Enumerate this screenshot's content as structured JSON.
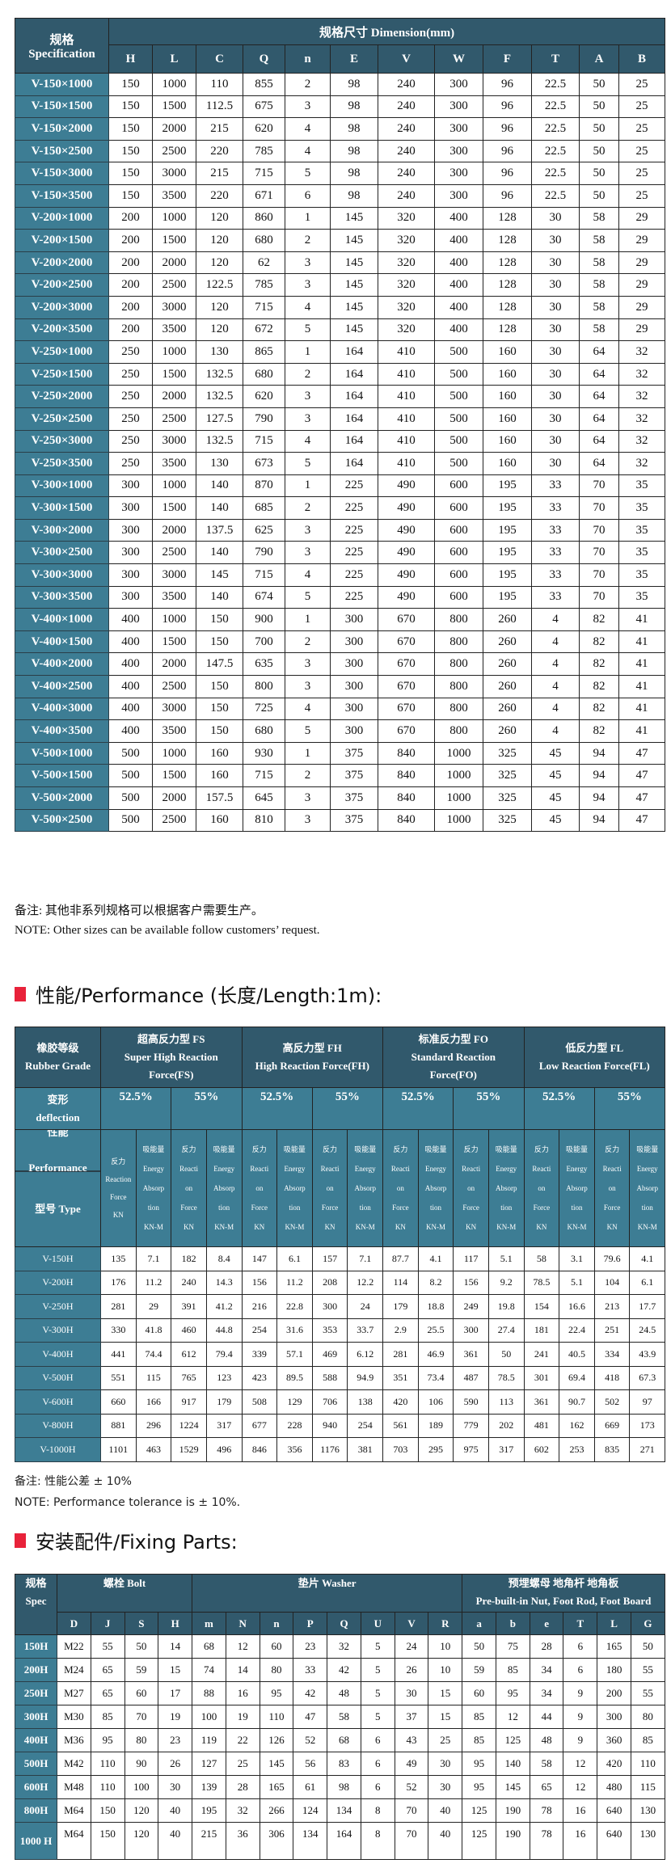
{
  "dimension_table": {
    "spec_header": [
      "规格",
      "Specification"
    ],
    "group_header": "规格尺寸  Dimension(mm)",
    "columns": [
      "H",
      "L",
      "C",
      "Q",
      "n",
      "E",
      "V",
      "W",
      "F",
      "T",
      "A",
      "B"
    ],
    "rows": [
      [
        "V-150×1000",
        "150",
        "1000",
        "110",
        "855",
        "2",
        "98",
        "240",
        "300",
        "96",
        "22.5",
        "50",
        "25"
      ],
      [
        "V-150×1500",
        "150",
        "1500",
        "112.5",
        "675",
        "3",
        "98",
        "240",
        "300",
        "96",
        "22.5",
        "50",
        "25"
      ],
      [
        "V-150×2000",
        "150",
        "2000",
        "215",
        "620",
        "4",
        "98",
        "240",
        "300",
        "96",
        "22.5",
        "50",
        "25"
      ],
      [
        "V-150×2500",
        "150",
        "2500",
        "220",
        "785",
        "4",
        "98",
        "240",
        "300",
        "96",
        "22.5",
        "50",
        "25"
      ],
      [
        "V-150×3000",
        "150",
        "3000",
        "215",
        "715",
        "5",
        "98",
        "240",
        "300",
        "96",
        "22.5",
        "50",
        "25"
      ],
      [
        "V-150×3500",
        "150",
        "3500",
        "220",
        "671",
        "6",
        "98",
        "240",
        "300",
        "96",
        "22.5",
        "50",
        "25"
      ],
      [
        "V-200×1000",
        "200",
        "1000",
        "120",
        "860",
        "1",
        "145",
        "320",
        "400",
        "128",
        "30",
        "58",
        "29"
      ],
      [
        "V-200×1500",
        "200",
        "1500",
        "120",
        "680",
        "2",
        "145",
        "320",
        "400",
        "128",
        "30",
        "58",
        "29"
      ],
      [
        "V-200×2000",
        "200",
        "2000",
        "120",
        "62",
        "3",
        "145",
        "320",
        "400",
        "128",
        "30",
        "58",
        "29"
      ],
      [
        "V-200×2500",
        "200",
        "2500",
        "122.5",
        "785",
        "3",
        "145",
        "320",
        "400",
        "128",
        "30",
        "58",
        "29"
      ],
      [
        "V-200×3000",
        "200",
        "3000",
        "120",
        "715",
        "4",
        "145",
        "320",
        "400",
        "128",
        "30",
        "58",
        "29"
      ],
      [
        "V-200×3500",
        "200",
        "3500",
        "120",
        "672",
        "5",
        "145",
        "320",
        "400",
        "128",
        "30",
        "58",
        "29"
      ],
      [
        "V-250×1000",
        "250",
        "1000",
        "130",
        "865",
        "1",
        "164",
        "410",
        "500",
        "160",
        "30",
        "64",
        "32"
      ],
      [
        "V-250×1500",
        "250",
        "1500",
        "132.5",
        "680",
        "2",
        "164",
        "410",
        "500",
        "160",
        "30",
        "64",
        "32"
      ],
      [
        "V-250×2000",
        "250",
        "2000",
        "132.5",
        "620",
        "3",
        "164",
        "410",
        "500",
        "160",
        "30",
        "64",
        "32"
      ],
      [
        "V-250×2500",
        "250",
        "2500",
        "127.5",
        "790",
        "3",
        "164",
        "410",
        "500",
        "160",
        "30",
        "64",
        "32"
      ],
      [
        "V-250×3000",
        "250",
        "3000",
        "132.5",
        "715",
        "4",
        "164",
        "410",
        "500",
        "160",
        "30",
        "64",
        "32"
      ],
      [
        "V-250×3500",
        "250",
        "3500",
        "130",
        "673",
        "5",
        "164",
        "410",
        "500",
        "160",
        "30",
        "64",
        "32"
      ],
      [
        "V-300×1000",
        "300",
        "1000",
        "140",
        "870",
        "1",
        "225",
        "490",
        "600",
        "195",
        "33",
        "70",
        "35"
      ],
      [
        "V-300×1500",
        "300",
        "1500",
        "140",
        "685",
        "2",
        "225",
        "490",
        "600",
        "195",
        "33",
        "70",
        "35"
      ],
      [
        "V-300×2000",
        "300",
        "2000",
        "137.5",
        "625",
        "3",
        "225",
        "490",
        "600",
        "195",
        "33",
        "70",
        "35"
      ],
      [
        "V-300×2500",
        "300",
        "2500",
        "140",
        "790",
        "3",
        "225",
        "490",
        "600",
        "195",
        "33",
        "70",
        "35"
      ],
      [
        "V-300×3000",
        "300",
        "3000",
        "145",
        "715",
        "4",
        "225",
        "490",
        "600",
        "195",
        "33",
        "70",
        "35"
      ],
      [
        "V-300×3500",
        "300",
        "3500",
        "140",
        "674",
        "5",
        "225",
        "490",
        "600",
        "195",
        "33",
        "70",
        "35"
      ],
      [
        "V-400×1000",
        "400",
        "1000",
        "150",
        "900",
        "1",
        "300",
        "670",
        "800",
        "260",
        "4",
        "82",
        "41"
      ],
      [
        "V-400×1500",
        "400",
        "1500",
        "150",
        "700",
        "2",
        "300",
        "670",
        "800",
        "260",
        "4",
        "82",
        "41"
      ],
      [
        "V-400×2000",
        "400",
        "2000",
        "147.5",
        "635",
        "3",
        "300",
        "670",
        "800",
        "260",
        "4",
        "82",
        "41"
      ],
      [
        "V-400×2500",
        "400",
        "2500",
        "150",
        "800",
        "3",
        "300",
        "670",
        "800",
        "260",
        "4",
        "82",
        "41"
      ],
      [
        "V-400×3000",
        "400",
        "3000",
        "150",
        "725",
        "4",
        "300",
        "670",
        "800",
        "260",
        "4",
        "82",
        "41"
      ],
      [
        "V-400×3500",
        "400",
        "3500",
        "150",
        "680",
        "5",
        "300",
        "670",
        "800",
        "260",
        "4",
        "82",
        "41"
      ],
      [
        "V-500×1000",
        "500",
        "1000",
        "160",
        "930",
        "1",
        "375",
        "840",
        "1000",
        "325",
        "45",
        "94",
        "47"
      ],
      [
        "V-500×1500",
        "500",
        "1500",
        "160",
        "715",
        "2",
        "375",
        "840",
        "1000",
        "325",
        "45",
        "94",
        "47"
      ],
      [
        "V-500×2000",
        "500",
        "2000",
        "157.5",
        "645",
        "3",
        "375",
        "840",
        "1000",
        "325",
        "45",
        "94",
        "47"
      ],
      [
        "V-500×2500",
        "500",
        "2500",
        "160",
        "810",
        "3",
        "375",
        "840",
        "1000",
        "325",
        "45",
        "94",
        "47"
      ]
    ]
  },
  "dimension_notes": {
    "cn": "备注:  其他非系列规格可以根据客户需要生产。",
    "en": "NOTE: Other sizes can be available follow customers’  request."
  },
  "performance_heading": "性能/Performance (长度/Length:1m):",
  "performance_table": {
    "grade_header": [
      "橡胶等级",
      "Rubber Grade"
    ],
    "groups": [
      [
        "超高反力型 FS",
        "Super High Reaction",
        "Force(FS)"
      ],
      [
        "高反力型 FH",
        "High Reaction Force(FH)"
      ],
      [
        "标准反力型 FO",
        "Standard Reaction",
        "Force(FO)"
      ],
      [
        "低反力型 FL",
        "Low Reaction Force(FL)"
      ]
    ],
    "deflection_header": [
      "变形",
      "deflection"
    ],
    "deflections": [
      "52.5%",
      "55%",
      "52.5%",
      "55%",
      "52.5%",
      "55%",
      "52.5%",
      "55%"
    ],
    "performance_header": [
      "性能",
      "Performance"
    ],
    "type_header": "型号 Type",
    "sub_headers": [
      [
        "反力",
        "Reaction",
        "Force",
        "KN"
      ],
      [
        "吸能量",
        "Energy",
        "Absorp",
        "tion",
        "KN-M"
      ],
      [
        "反力",
        "Reacti",
        "on",
        "Force",
        "KN"
      ],
      [
        "吸能量",
        "Energy",
        "Absorp",
        "tion",
        "KN-M"
      ],
      [
        "反力",
        "Reacti",
        "on",
        "Force",
        "KN"
      ],
      [
        "吸能量",
        "Energy",
        "Absorp",
        "tion",
        "KN-M"
      ],
      [
        "反力",
        "Reacti",
        "on",
        "Force",
        "KN"
      ],
      [
        "吸能量",
        "Energy",
        "Absorp",
        "tion",
        "KN-M"
      ],
      [
        "反力",
        "Reacti",
        "on",
        "Force",
        "KN"
      ],
      [
        "吸能量",
        "Energy",
        "Absorp",
        "tion",
        "KN-M"
      ],
      [
        "反力",
        "Reacti",
        "on",
        "Force",
        "KN"
      ],
      [
        "吸能量",
        "Energy",
        "Absorp",
        "tion",
        "KN-M"
      ],
      [
        "反力",
        "Reacti",
        "on",
        "Force",
        "KN"
      ],
      [
        "吸能量",
        "Energy",
        "Absorp",
        "tion",
        "KN-M"
      ],
      [
        "反力",
        "Reacti",
        "on",
        "Force",
        "KN"
      ],
      [
        "吸能量",
        "Energy",
        "Absorp",
        "tion",
        "KN-M"
      ]
    ],
    "rows": [
      [
        "V-150H",
        "135",
        "7.1",
        "182",
        "8.4",
        "147",
        "6.1",
        "157",
        "7.1",
        "87.7",
        "4.1",
        "117",
        "5.1",
        "58",
        "3.1",
        "79.6",
        "4.1"
      ],
      [
        "V-200H",
        "176",
        "11.2",
        "240",
        "14.3",
        "156",
        "11.2",
        "208",
        "12.2",
        "114",
        "8.2",
        "156",
        "9.2",
        "78.5",
        "5.1",
        "104",
        "6.1"
      ],
      [
        "V-250H",
        "281",
        "29",
        "391",
        "41.2",
        "216",
        "22.8",
        "300",
        "24",
        "179",
        "18.8",
        "249",
        "19.8",
        "154",
        "16.6",
        "213",
        "17.7"
      ],
      [
        "V-300H",
        "330",
        "41.8",
        "460",
        "44.8",
        "254",
        "31.6",
        "353",
        "33.7",
        "2.9",
        "25.5",
        "300",
        "27.4",
        "181",
        "22.4",
        "251",
        "24.5"
      ],
      [
        "V-400H",
        "441",
        "74.4",
        "612",
        "79.4",
        "339",
        "57.1",
        "469",
        "6.12",
        "281",
        "46.9",
        "361",
        "50",
        "241",
        "40.5",
        "334",
        "43.9"
      ],
      [
        "V-500H",
        "551",
        "115",
        "765",
        "123",
        "423",
        "89.5",
        "588",
        "94.9",
        "351",
        "73.4",
        "487",
        "78.5",
        "301",
        "69.4",
        "418",
        "67.3"
      ],
      [
        "V-600H",
        "660",
        "166",
        "917",
        "179",
        "508",
        "129",
        "706",
        "138",
        "420",
        "106",
        "590",
        "113",
        "361",
        "90.7",
        "502",
        "97"
      ],
      [
        "V-800H",
        "881",
        "296",
        "1224",
        "317",
        "677",
        "228",
        "940",
        "254",
        "561",
        "189",
        "779",
        "202",
        "481",
        "162",
        "669",
        "173"
      ],
      [
        "V-1000H",
        "1101",
        "463",
        "1529",
        "496",
        "846",
        "356",
        "1176",
        "381",
        "703",
        "295",
        "975",
        "317",
        "602",
        "253",
        "835",
        "271"
      ]
    ]
  },
  "performance_notes": {
    "cn": "备注:   性能公差 ± 10%",
    "en": "NOTE: Performance tolerance is  ± 10%."
  },
  "fixing_heading": "安装配件/Fixing Parts:",
  "fixing_table": {
    "spec_header": [
      "规格",
      "Spec"
    ],
    "groups": [
      {
        "label": [
          "螺栓  Bolt"
        ],
        "span": 4
      },
      {
        "label": [
          "垫片  Washer"
        ],
        "span": 8
      },
      {
        "label": [
          "预埋螺母   地角杆   地角板",
          "Pre-built-in Nut, Foot Rod, Foot Board"
        ],
        "span": 6
      }
    ],
    "columns": [
      "D",
      "J",
      "S",
      "H",
      "m",
      "N",
      "n",
      "P",
      "Q",
      "U",
      "V",
      "R",
      "a",
      "b",
      "e",
      "T",
      "L",
      "G"
    ],
    "rows": [
      [
        "150H",
        "M22",
        "55",
        "50",
        "14",
        "68",
        "12",
        "60",
        "23",
        "32",
        "5",
        "24",
        "10",
        "50",
        "75",
        "28",
        "6",
        "165",
        "50"
      ],
      [
        "200H",
        "M24",
        "65",
        "59",
        "15",
        "74",
        "14",
        "80",
        "33",
        "42",
        "5",
        "26",
        "10",
        "59",
        "85",
        "34",
        "6",
        "180",
        "55"
      ],
      [
        "250H",
        "M27",
        "65",
        "60",
        "17",
        "88",
        "16",
        "95",
        "42",
        "48",
        "5",
        "30",
        "15",
        "60",
        "95",
        "34",
        "9",
        "200",
        "55"
      ],
      [
        "300H",
        "M30",
        "85",
        "70",
        "19",
        "100",
        "19",
        "110",
        "47",
        "58",
        "5",
        "37",
        "15",
        "85",
        "12",
        "44",
        "9",
        "300",
        "80"
      ],
      [
        "400H",
        "M36",
        "95",
        "80",
        "23",
        "119",
        "22",
        "126",
        "52",
        "68",
        "6",
        "43",
        "25",
        "85",
        "125",
        "48",
        "9",
        "360",
        "85"
      ],
      [
        "500H",
        "M42",
        "110",
        "90",
        "26",
        "127",
        "25",
        "145",
        "56",
        "83",
        "6",
        "49",
        "30",
        "95",
        "140",
        "58",
        "12",
        "420",
        "110"
      ],
      [
        "600H",
        "M48",
        "110",
        "100",
        "30",
        "139",
        "28",
        "165",
        "61",
        "98",
        "6",
        "52",
        "30",
        "95",
        "145",
        "65",
        "12",
        "480",
        "115"
      ],
      [
        "800H",
        "M64",
        "150",
        "120",
        "40",
        "195",
        "32",
        "266",
        "124",
        "134",
        "8",
        "70",
        "40",
        "125",
        "190",
        "78",
        "16",
        "640",
        "130"
      ],
      [
        "1000 H",
        "M64",
        "150",
        "120",
        "40",
        "215",
        "36",
        "306",
        "134",
        "164",
        "8",
        "70",
        "40",
        "125",
        "190",
        "78",
        "16",
        "640",
        "130"
      ]
    ]
  },
  "colors": {
    "header_dark": "#31596c",
    "header_teal": "#3d7d94",
    "heading_marker": "#e8223a"
  }
}
